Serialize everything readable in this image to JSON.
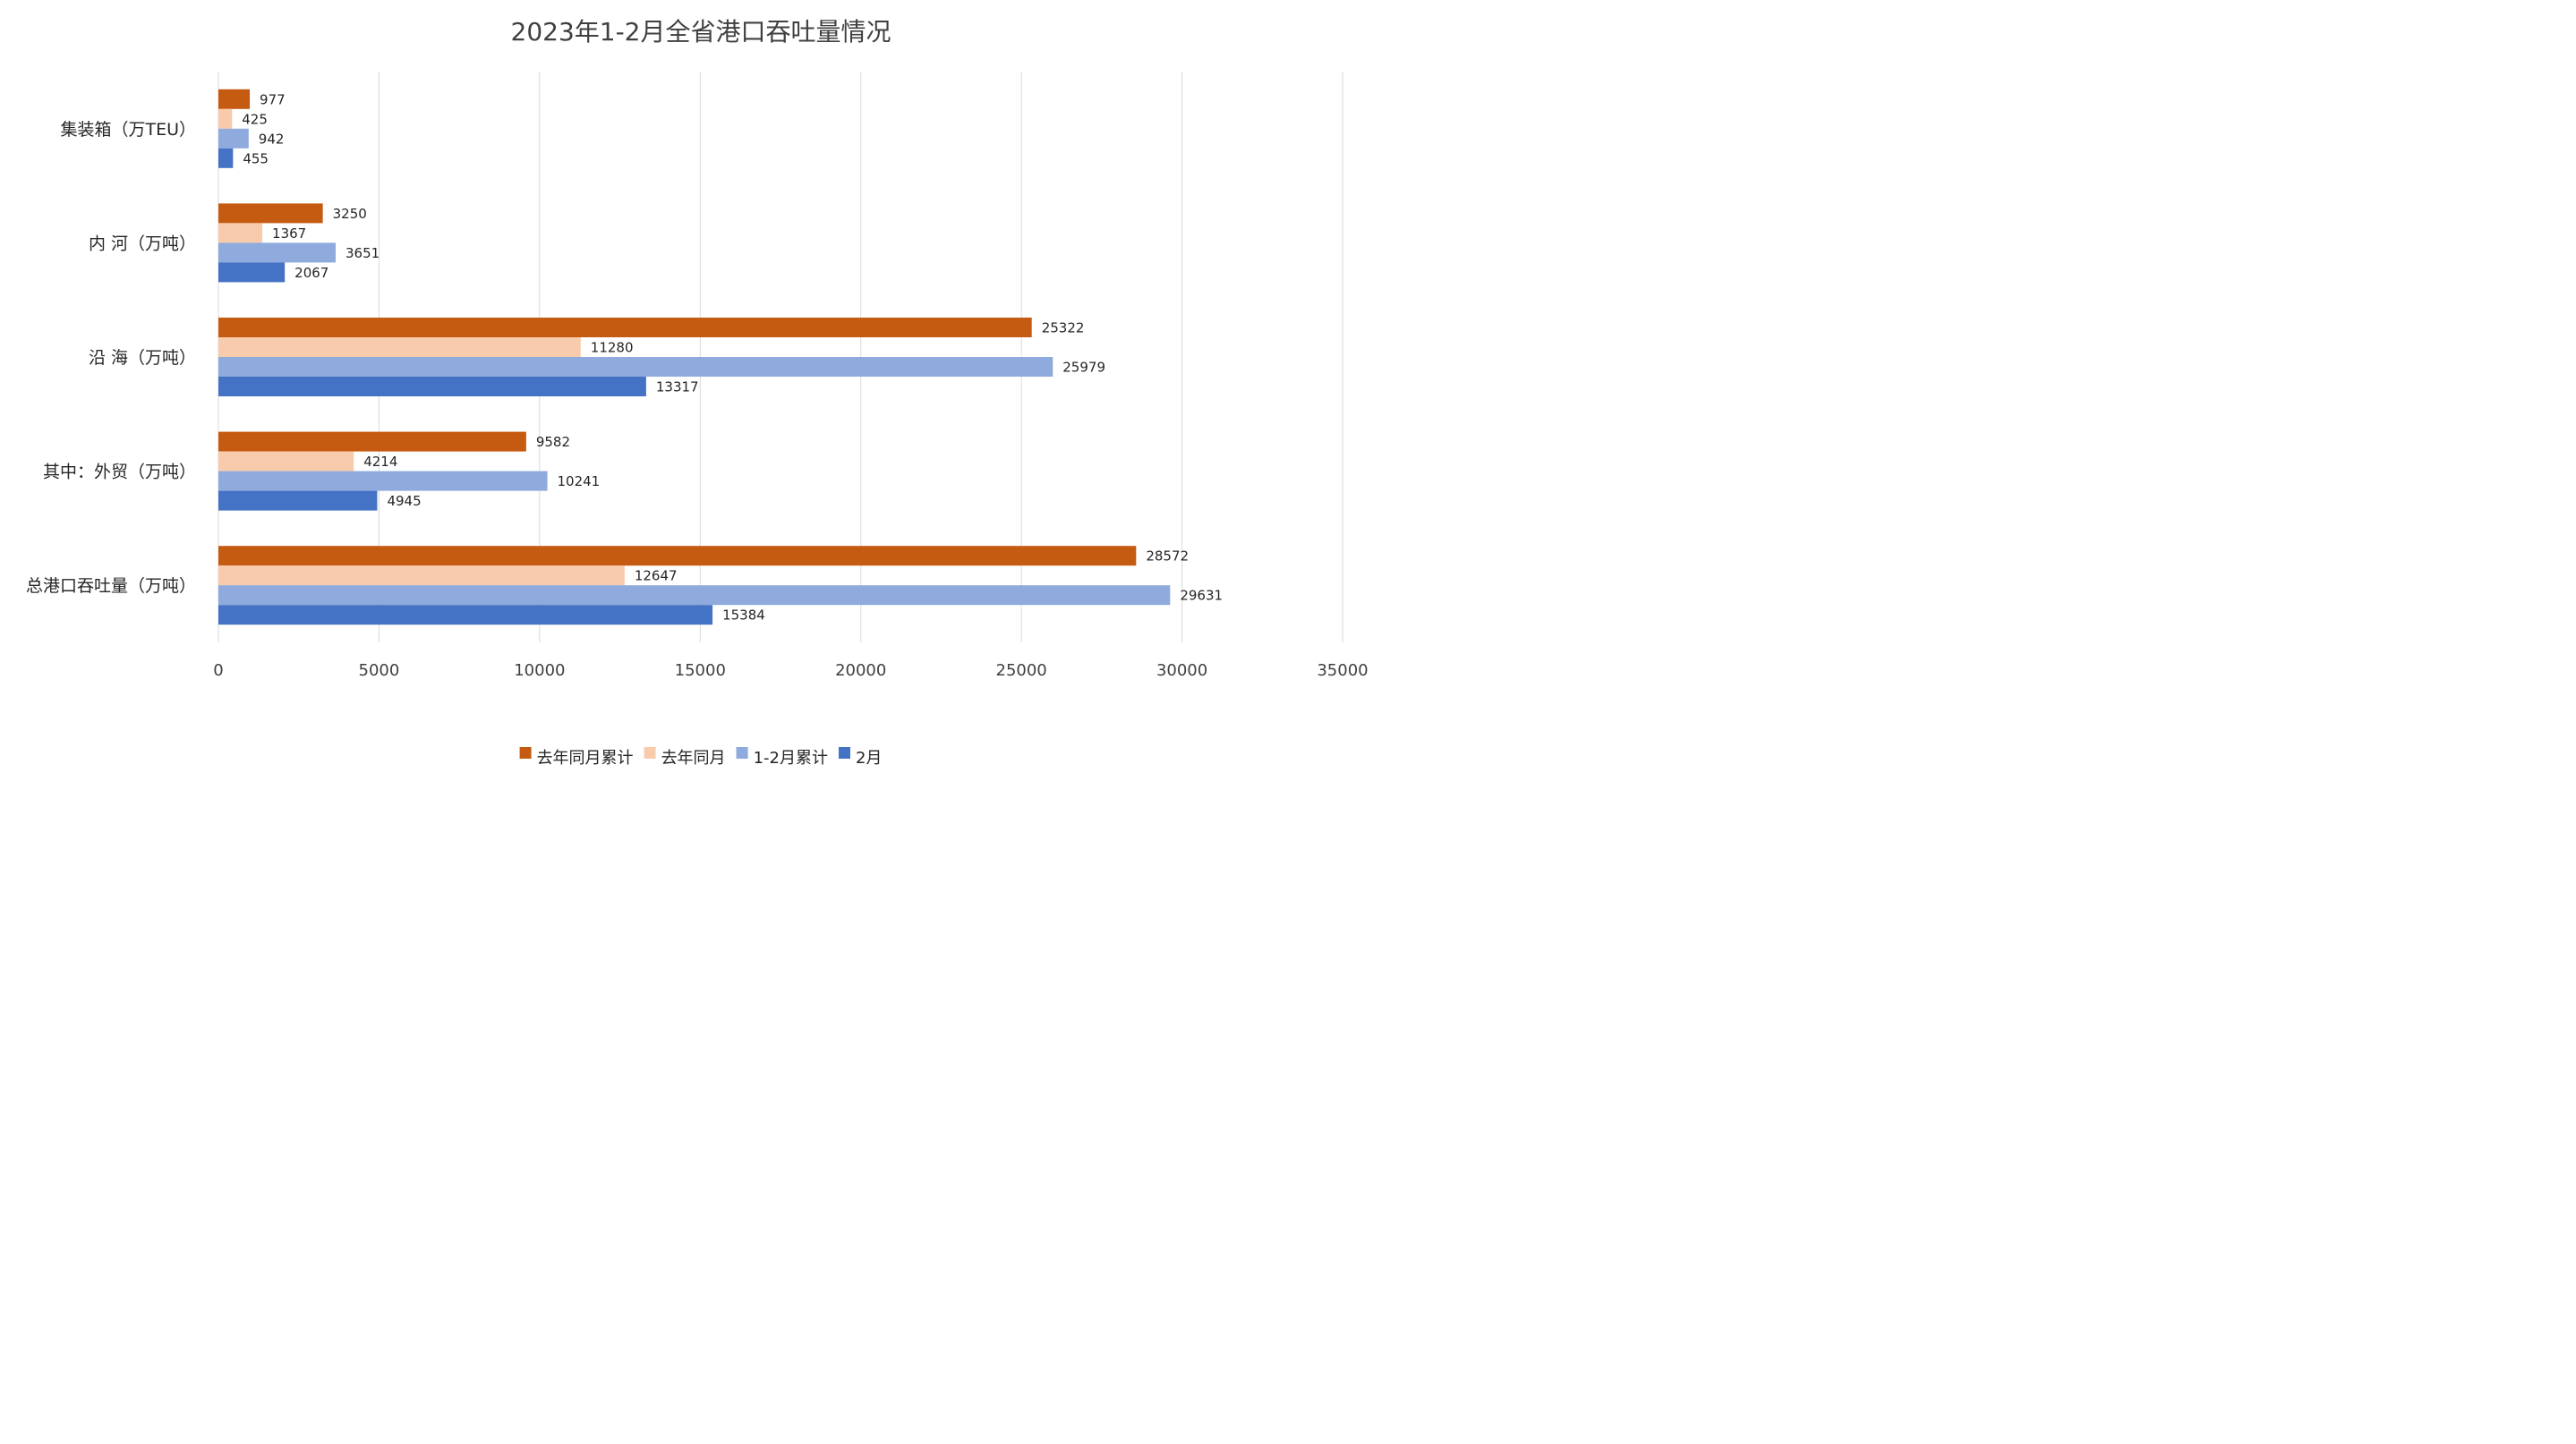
{
  "chart_data": {
    "type": "bar",
    "orientation": "horizontal",
    "title": "2023年1-2月全省港口吞吐量情况",
    "categories": [
      "集装箱（万TEU）",
      "内 河（万吨）",
      "沿 海（万吨）",
      "其中：外贸（万吨）",
      "总港口吞吐量（万吨）"
    ],
    "series": [
      {
        "name": "去年同月累计",
        "color": "#C55A11",
        "values": [
          977,
          3250,
          25322,
          9582,
          28572
        ]
      },
      {
        "name": "去年同月",
        "color": "#F8CBAD",
        "values": [
          425,
          1367,
          11280,
          4214,
          12647
        ]
      },
      {
        "name": "1-2月累计",
        "color": "#8FAADC",
        "values": [
          942,
          3651,
          25979,
          10241,
          29631
        ]
      },
      {
        "name": "2月",
        "color": "#4472C4",
        "values": [
          455,
          2067,
          13317,
          4945,
          15384
        ]
      }
    ],
    "xlim": [
      0,
      35000
    ],
    "x_ticks": [
      0,
      5000,
      10000,
      15000,
      20000,
      25000,
      30000,
      35000
    ],
    "grid": "vertical",
    "legend": "bottom"
  }
}
